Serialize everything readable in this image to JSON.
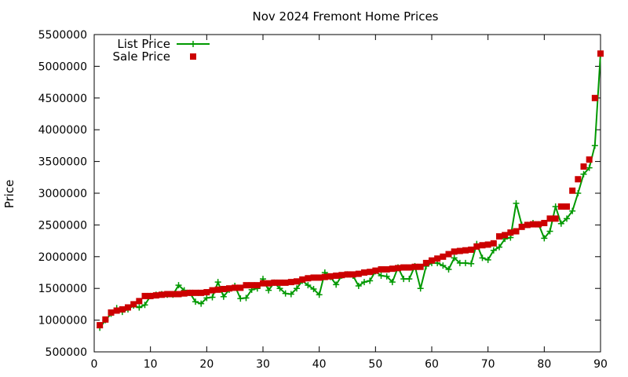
{
  "chart_data": {
    "type": "line",
    "title": "Nov 2024 Fremont Home Prices",
    "xlabel": "",
    "ylabel": "Price",
    "xlim": [
      0,
      90
    ],
    "ylim": [
      500000,
      5500000
    ],
    "x_ticks": [
      0,
      10,
      20,
      30,
      40,
      50,
      60,
      70,
      80,
      90
    ],
    "y_ticks": [
      500000,
      1000000,
      1500000,
      2000000,
      2500000,
      3000000,
      3500000,
      4000000,
      4500000,
      5000000,
      5500000
    ],
    "grid": false,
    "legend_position": "top-left",
    "series": [
      {
        "name": "List Price",
        "style": "line+cross",
        "color": "#009900",
        "x": [
          1,
          2,
          3,
          4,
          5,
          6,
          7,
          8,
          9,
          10,
          11,
          12,
          13,
          14,
          15,
          16,
          17,
          18,
          19,
          20,
          21,
          22,
          23,
          24,
          25,
          26,
          27,
          28,
          29,
          30,
          31,
          32,
          33,
          34,
          35,
          36,
          37,
          38,
          39,
          40,
          41,
          42,
          43,
          44,
          45,
          46,
          47,
          48,
          49,
          50,
          51,
          52,
          53,
          54,
          55,
          56,
          57,
          58,
          59,
          60,
          61,
          62,
          63,
          64,
          65,
          66,
          67,
          68,
          69,
          70,
          71,
          72,
          73,
          74,
          75,
          76,
          77,
          78,
          79,
          80,
          81,
          82,
          83,
          84,
          85,
          86,
          87,
          88,
          89,
          90
        ],
        "values": [
          880000,
          1000000,
          1100000,
          1190000,
          1130000,
          1170000,
          1230000,
          1200000,
          1240000,
          1380000,
          1400000,
          1410000,
          1400000,
          1400000,
          1550000,
          1470000,
          1430000,
          1290000,
          1260000,
          1350000,
          1360000,
          1600000,
          1370000,
          1480000,
          1540000,
          1340000,
          1350000,
          1480000,
          1500000,
          1650000,
          1470000,
          1590000,
          1500000,
          1420000,
          1410000,
          1500000,
          1620000,
          1550000,
          1490000,
          1400000,
          1750000,
          1680000,
          1560000,
          1700000,
          1720000,
          1700000,
          1540000,
          1600000,
          1620000,
          1770000,
          1700000,
          1690000,
          1600000,
          1830000,
          1650000,
          1650000,
          1850000,
          1500000,
          1850000,
          1900000,
          1900000,
          1860000,
          1800000,
          1980000,
          1900000,
          1900000,
          1890000,
          2200000,
          1980000,
          1950000,
          2100000,
          2150000,
          2280000,
          2300000,
          2840000,
          2500000,
          2500000,
          2530000,
          2510000,
          2290000,
          2400000,
          2790000,
          2520000,
          2600000,
          2720000,
          3000000,
          3300000,
          3400000,
          3750000,
          5200000
        ]
      },
      {
        "name": "Sale Price",
        "style": "square",
        "color": "#cc0000",
        "x": [
          1,
          2,
          3,
          4,
          5,
          6,
          7,
          8,
          9,
          10,
          11,
          12,
          13,
          14,
          15,
          16,
          17,
          18,
          19,
          20,
          21,
          22,
          23,
          24,
          25,
          26,
          27,
          28,
          29,
          30,
          31,
          32,
          33,
          34,
          35,
          36,
          37,
          38,
          39,
          40,
          41,
          42,
          43,
          44,
          45,
          46,
          47,
          48,
          49,
          50,
          51,
          52,
          53,
          54,
          55,
          56,
          57,
          58,
          59,
          60,
          61,
          62,
          63,
          64,
          65,
          66,
          67,
          68,
          69,
          70,
          71,
          72,
          73,
          74,
          75,
          76,
          77,
          78,
          79,
          80,
          81,
          82,
          83,
          84,
          85,
          86,
          87,
          88,
          89,
          90
        ],
        "values": [
          920000,
          1010000,
          1120000,
          1150000,
          1170000,
          1200000,
          1250000,
          1300000,
          1380000,
          1380000,
          1390000,
          1400000,
          1410000,
          1410000,
          1410000,
          1420000,
          1430000,
          1430000,
          1430000,
          1440000,
          1470000,
          1480000,
          1490000,
          1500000,
          1510000,
          1510000,
          1550000,
          1550000,
          1550000,
          1580000,
          1580000,
          1590000,
          1590000,
          1590000,
          1600000,
          1610000,
          1640000,
          1660000,
          1670000,
          1670000,
          1680000,
          1690000,
          1700000,
          1710000,
          1720000,
          1720000,
          1730000,
          1750000,
          1760000,
          1780000,
          1800000,
          1800000,
          1810000,
          1820000,
          1830000,
          1830000,
          1840000,
          1840000,
          1900000,
          1940000,
          1970000,
          2000000,
          2040000,
          2080000,
          2090000,
          2100000,
          2110000,
          2160000,
          2180000,
          2190000,
          2210000,
          2320000,
          2340000,
          2380000,
          2400000,
          2470000,
          2500000,
          2510000,
          2510000,
          2530000,
          2600000,
          2600000,
          2790000,
          2790000,
          3040000,
          3220000,
          3420000,
          3530000,
          4500000,
          5200000
        ]
      }
    ]
  }
}
